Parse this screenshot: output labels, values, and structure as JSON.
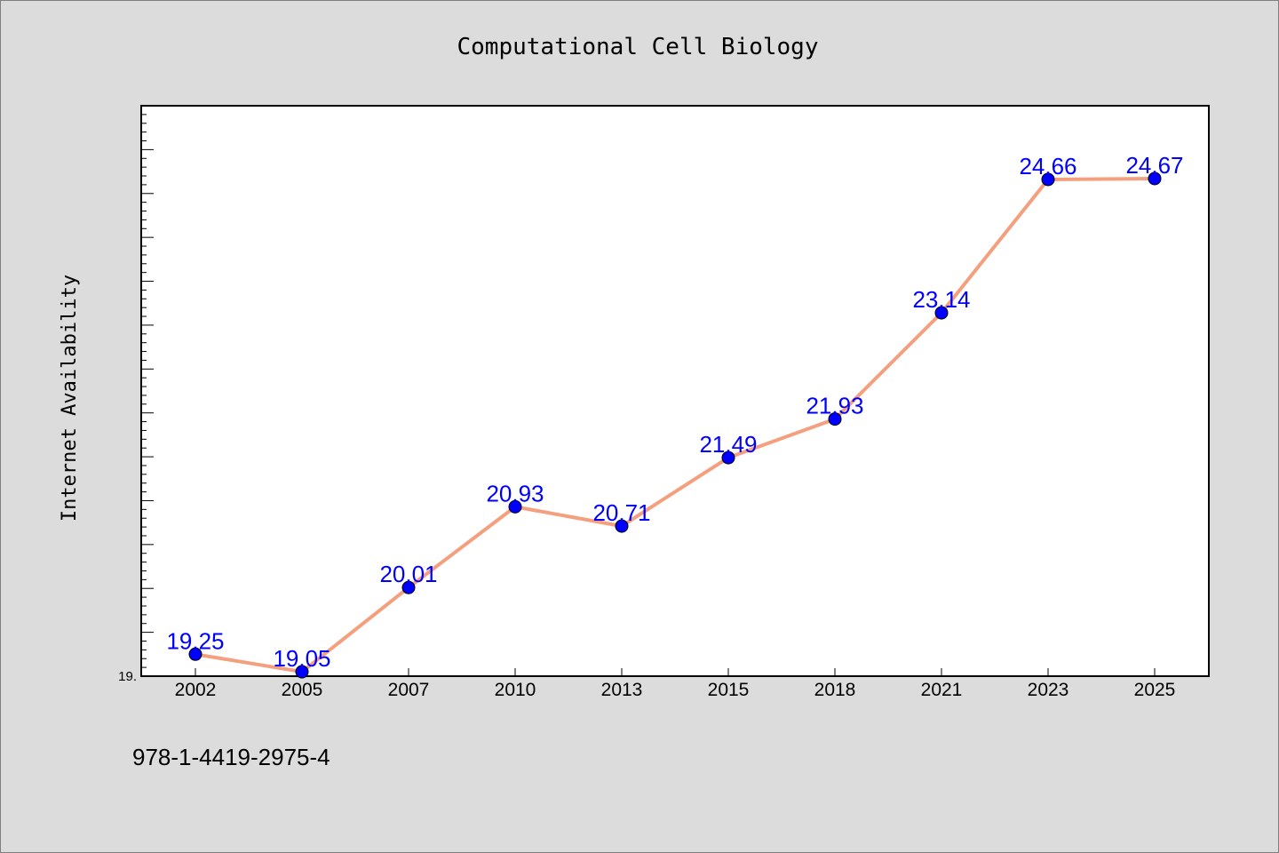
{
  "chart_data": {
    "type": "line",
    "title": "Computational Cell Biology",
    "xlabel": "",
    "ylabel": "Internet Availability",
    "categories": [
      "2002",
      "2005",
      "2007",
      "2010",
      "2013",
      "2015",
      "2018",
      "2021",
      "2023",
      "2025"
    ],
    "series": [
      {
        "values": [
          19.25,
          19.05,
          20.01,
          20.93,
          20.71,
          21.49,
          21.93,
          23.14,
          24.66,
          24.67
        ],
        "labels": [
          "19.25",
          "19.05",
          "20.01",
          "20.93",
          "20.71",
          "21.49",
          "21.93",
          "23.14",
          "24.66",
          "24.67"
        ]
      }
    ],
    "ylim": [
      19.0,
      25.5
    ],
    "ytick_labels": [
      "19."
    ],
    "grid": false,
    "legend": "none",
    "colors": {
      "line": "#f4a07f",
      "marker": "#0000ff",
      "data_label": "#0000ff",
      "plot_background": "#ffffff",
      "figure_background": "#dcdcdc"
    }
  },
  "footer_text": "978-1-4419-2975-4"
}
